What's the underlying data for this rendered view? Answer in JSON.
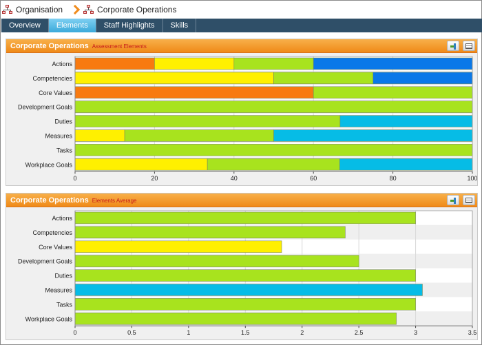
{
  "breadcrumb": {
    "items": [
      {
        "label": "Organisation",
        "icon": "org-chart-icon"
      },
      {
        "label": "Corporate Operations",
        "icon": "org-chart-icon"
      }
    ],
    "separator_icon": "chevron-right-icon"
  },
  "tabs": [
    {
      "label": "Overview",
      "active": false
    },
    {
      "label": "Elements",
      "active": true
    },
    {
      "label": "Staff Highlights",
      "active": false
    },
    {
      "label": "Skills",
      "active": false
    }
  ],
  "colors": {
    "orange": "#f87a10",
    "yellow": "#fff000",
    "green": "#a8e31e",
    "blue": "#0a78e8",
    "cyan": "#06bce6",
    "tab_bar": "#2f4f68",
    "panel_header": "#f39a28"
  },
  "panels": [
    {
      "title": "Corporate Operations",
      "subtitle": "Assessment Elements",
      "buttons": [
        "export-icon",
        "table-icon"
      ]
    },
    {
      "title": "Corporate Operations",
      "subtitle": "Elements Average",
      "buttons": [
        "export-icon",
        "table-icon"
      ]
    }
  ],
  "chart_data": [
    {
      "type": "bar",
      "orientation": "horizontal",
      "stacked": true,
      "categories": [
        "Actions",
        "Competencies",
        "Core Values",
        "Development Goals",
        "Duties",
        "Measures",
        "Tasks",
        "Workplace Goals"
      ],
      "segments": [
        [
          {
            "value": 20,
            "color": "orange"
          },
          {
            "value": 20,
            "color": "yellow"
          },
          {
            "value": 20,
            "color": "green"
          },
          {
            "value": 40,
            "color": "blue"
          }
        ],
        [
          {
            "value": 50,
            "color": "yellow"
          },
          {
            "value": 25,
            "color": "green"
          },
          {
            "value": 25,
            "color": "blue"
          }
        ],
        [
          {
            "value": 60,
            "color": "orange"
          },
          {
            "value": 40,
            "color": "green"
          }
        ],
        [
          {
            "value": 100,
            "color": "green"
          }
        ],
        [
          {
            "value": 66.7,
            "color": "green"
          },
          {
            "value": 33.3,
            "color": "cyan"
          }
        ],
        [
          {
            "value": 12.5,
            "color": "yellow"
          },
          {
            "value": 37.5,
            "color": "green"
          },
          {
            "value": 50,
            "color": "cyan"
          }
        ],
        [
          {
            "value": 100,
            "color": "green"
          }
        ],
        [
          {
            "value": 33.3,
            "color": "yellow"
          },
          {
            "value": 33.3,
            "color": "green"
          },
          {
            "value": 33.4,
            "color": "cyan"
          }
        ]
      ],
      "xlim": [
        0,
        100
      ],
      "xticks": [
        "0",
        "20",
        "40",
        "60",
        "80",
        "100"
      ],
      "grid": true
    },
    {
      "type": "bar",
      "orientation": "horizontal",
      "categories": [
        "Actions",
        "Competencies",
        "Core Values",
        "Development Goals",
        "Duties",
        "Measures",
        "Tasks",
        "Workplace Goals"
      ],
      "values": [
        3.0,
        2.38,
        1.82,
        2.5,
        3.0,
        3.06,
        3.0,
        2.83
      ],
      "colors": [
        "green",
        "green",
        "yellow",
        "green",
        "green",
        "cyan",
        "green",
        "green"
      ],
      "xlim": [
        0,
        3.5
      ],
      "xticks": [
        "0",
        "0.5",
        "1",
        "1.5",
        "2",
        "2.5",
        "3",
        "3.5"
      ],
      "grid": true
    }
  ]
}
